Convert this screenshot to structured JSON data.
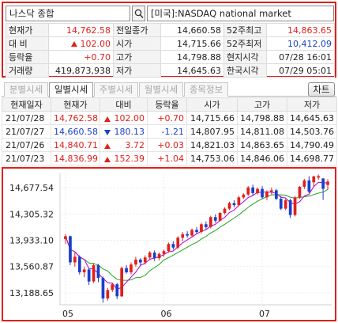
{
  "search": {
    "symbol": "나스닥 종합",
    "market": "[미국]:NASDAQ national market"
  },
  "quote": {
    "rows": [
      [
        {
          "label": "현재가",
          "value": "14,762.58",
          "color": "red"
        },
        {
          "label": "전일종가",
          "value": "14,660.58",
          "color": ""
        },
        {
          "label": "52주최고",
          "value": "14,863.65",
          "color": "red"
        }
      ],
      [
        {
          "label": "대 비",
          "value": "102.00",
          "color": "red",
          "arrow": "up"
        },
        {
          "label": "시가",
          "value": "14,715.66",
          "color": ""
        },
        {
          "label": "52주최저",
          "value": "10,412.09",
          "color": "blue"
        }
      ],
      [
        {
          "label": "등락율",
          "value": "+0.70",
          "color": "red"
        },
        {
          "label": "고가",
          "value": "14,798.88",
          "color": ""
        },
        {
          "label": "현지시각",
          "value": "07/28 16:01",
          "color": ""
        }
      ],
      [
        {
          "label": "거래량",
          "value": "419,873,938",
          "color": ""
        },
        {
          "label": "저가",
          "value": "14,645.63",
          "color": ""
        },
        {
          "label": "한국시각",
          "value": "07/29 05:01",
          "color": ""
        }
      ]
    ]
  },
  "tabs": [
    {
      "label": "분별시세",
      "active": false
    },
    {
      "label": "일별시세",
      "active": true
    },
    {
      "label": "주별시세",
      "active": false
    },
    {
      "label": "월별시세",
      "active": false
    },
    {
      "label": "종목정보",
      "active": false
    }
  ],
  "chart_button_label": "차트",
  "daily": {
    "headers": [
      "현재일자",
      "현재가",
      "대비",
      "등락율",
      "시가",
      "고가",
      "저가"
    ],
    "rows": [
      {
        "date": "21/07/28",
        "price": "14,762.58",
        "dir": "up",
        "change": "102.00",
        "rate": "+0.70",
        "open": "14,715.66",
        "high": "14,798.88",
        "low": "14,645.63"
      },
      {
        "date": "21/07/27",
        "price": "14,660.58",
        "dir": "down",
        "change": "180.13",
        "rate": "-1.21",
        "open": "14,807.95",
        "high": "14,811.08",
        "low": "14,503.76"
      },
      {
        "date": "21/07/26",
        "price": "14,840.71",
        "dir": "up",
        "change": "3.72",
        "rate": "+0.03",
        "open": "14,821.03",
        "high": "14,863.65",
        "low": "14,790.49"
      },
      {
        "date": "21/07/23",
        "price": "14,836.99",
        "dir": "up",
        "change": "152.39",
        "rate": "+1.04",
        "open": "14,753.06",
        "high": "14,846.06",
        "low": "14,698.77"
      }
    ]
  },
  "colors": {
    "up": "#e0201c",
    "down": "#1a3fc8",
    "ma_short": "#b400d0",
    "ma_long": "#1fa51f"
  },
  "chart_data": {
    "type": "candlestick",
    "y_ticks": [
      "14,677.54",
      "14,305.32",
      "13,933.10",
      "13,560.87",
      "13,188.65"
    ],
    "y_tick_values": [
      14677.54,
      14305.32,
      13933.1,
      13560.87,
      13188.65
    ],
    "x_ticks": [
      "05",
      "06",
      "07"
    ],
    "x_tick_index": [
      0,
      21,
      42
    ],
    "ylim": [
      13020,
      14880
    ],
    "candles": [
      {
        "o": 13950,
        "h": 14020,
        "l": 13880,
        "c": 13990
      },
      {
        "o": 13990,
        "h": 14000,
        "l": 13580,
        "c": 13620
      },
      {
        "o": 13620,
        "h": 13760,
        "l": 13560,
        "c": 13700
      },
      {
        "o": 13700,
        "h": 13720,
        "l": 13450,
        "c": 13480
      },
      {
        "o": 13480,
        "h": 13560,
        "l": 13410,
        "c": 13520
      },
      {
        "o": 13520,
        "h": 13540,
        "l": 13300,
        "c": 13350
      },
      {
        "o": 13350,
        "h": 13600,
        "l": 13330,
        "c": 13580
      },
      {
        "o": 13580,
        "h": 13600,
        "l": 13340,
        "c": 13400
      },
      {
        "o": 13400,
        "h": 13420,
        "l": 13050,
        "c": 13110
      },
      {
        "o": 13110,
        "h": 13260,
        "l": 13080,
        "c": 13230
      },
      {
        "o": 13230,
        "h": 13330,
        "l": 13200,
        "c": 13310
      },
      {
        "o": 13310,
        "h": 13330,
        "l": 13100,
        "c": 13140
      },
      {
        "o": 13140,
        "h": 13560,
        "l": 13130,
        "c": 13540
      },
      {
        "o": 13540,
        "h": 13580,
        "l": 13460,
        "c": 13480
      },
      {
        "o": 13480,
        "h": 13620,
        "l": 13450,
        "c": 13590
      },
      {
        "o": 13590,
        "h": 13700,
        "l": 13560,
        "c": 13660
      },
      {
        "o": 13660,
        "h": 13680,
        "l": 13580,
        "c": 13620
      },
      {
        "o": 13620,
        "h": 13720,
        "l": 13590,
        "c": 13690
      },
      {
        "o": 13690,
        "h": 13780,
        "l": 13660,
        "c": 13760
      },
      {
        "o": 13760,
        "h": 13790,
        "l": 13640,
        "c": 13680
      },
      {
        "o": 13680,
        "h": 13760,
        "l": 13650,
        "c": 13740
      },
      {
        "o": 13740,
        "h": 13800,
        "l": 13700,
        "c": 13780
      },
      {
        "o": 13780,
        "h": 13900,
        "l": 13760,
        "c": 13880
      },
      {
        "o": 13880,
        "h": 13920,
        "l": 13800,
        "c": 13830
      },
      {
        "o": 13830,
        "h": 13990,
        "l": 13810,
        "c": 13970
      },
      {
        "o": 13970,
        "h": 14050,
        "l": 13920,
        "c": 14020
      },
      {
        "o": 14020,
        "h": 14060,
        "l": 13970,
        "c": 14000
      },
      {
        "o": 14000,
        "h": 14100,
        "l": 13980,
        "c": 14080
      },
      {
        "o": 14080,
        "h": 14120,
        "l": 14020,
        "c": 14050
      },
      {
        "o": 14050,
        "h": 14180,
        "l": 14030,
        "c": 14160
      },
      {
        "o": 14160,
        "h": 14200,
        "l": 14090,
        "c": 14120
      },
      {
        "o": 14120,
        "h": 14280,
        "l": 14100,
        "c": 14260
      },
      {
        "o": 14260,
        "h": 14300,
        "l": 14180,
        "c": 14210
      },
      {
        "o": 14210,
        "h": 14330,
        "l": 14200,
        "c": 14320
      },
      {
        "o": 14320,
        "h": 14400,
        "l": 14300,
        "c": 14380
      },
      {
        "o": 14380,
        "h": 14480,
        "l": 14360,
        "c": 14460
      },
      {
        "o": 14460,
        "h": 14500,
        "l": 14400,
        "c": 14430
      },
      {
        "o": 14430,
        "h": 14560,
        "l": 14420,
        "c": 14540
      },
      {
        "o": 14540,
        "h": 14600,
        "l": 14520,
        "c": 14580
      },
      {
        "o": 14580,
        "h": 14700,
        "l": 14560,
        "c": 14680
      },
      {
        "o": 14680,
        "h": 14720,
        "l": 14560,
        "c": 14600
      },
      {
        "o": 14600,
        "h": 14680,
        "l": 14580,
        "c": 14660
      },
      {
        "o": 14660,
        "h": 14700,
        "l": 14520,
        "c": 14540
      },
      {
        "o": 14540,
        "h": 14640,
        "l": 14500,
        "c": 14620
      },
      {
        "o": 14620,
        "h": 14680,
        "l": 14580,
        "c": 14640
      },
      {
        "o": 14640,
        "h": 14660,
        "l": 14500,
        "c": 14520
      },
      {
        "o": 14520,
        "h": 14560,
        "l": 14360,
        "c": 14380
      },
      {
        "o": 14380,
        "h": 14520,
        "l": 14360,
        "c": 14500
      },
      {
        "o": 14500,
        "h": 14520,
        "l": 14250,
        "c": 14290
      },
      {
        "o": 14290,
        "h": 14560,
        "l": 14270,
        "c": 14540
      },
      {
        "o": 14540,
        "h": 14700,
        "l": 14520,
        "c": 14690
      },
      {
        "o": 14690,
        "h": 14800,
        "l": 14660,
        "c": 14780
      },
      {
        "o": 14780,
        "h": 14840,
        "l": 14600,
        "c": 14620
      },
      {
        "o": 14753,
        "h": 14846,
        "l": 14699,
        "c": 14837
      },
      {
        "o": 14821,
        "h": 14864,
        "l": 14790,
        "c": 14841
      },
      {
        "o": 14808,
        "h": 14811,
        "l": 14504,
        "c": 14661
      },
      {
        "o": 14716,
        "h": 14799,
        "l": 14646,
        "c": 14763
      }
    ]
  }
}
